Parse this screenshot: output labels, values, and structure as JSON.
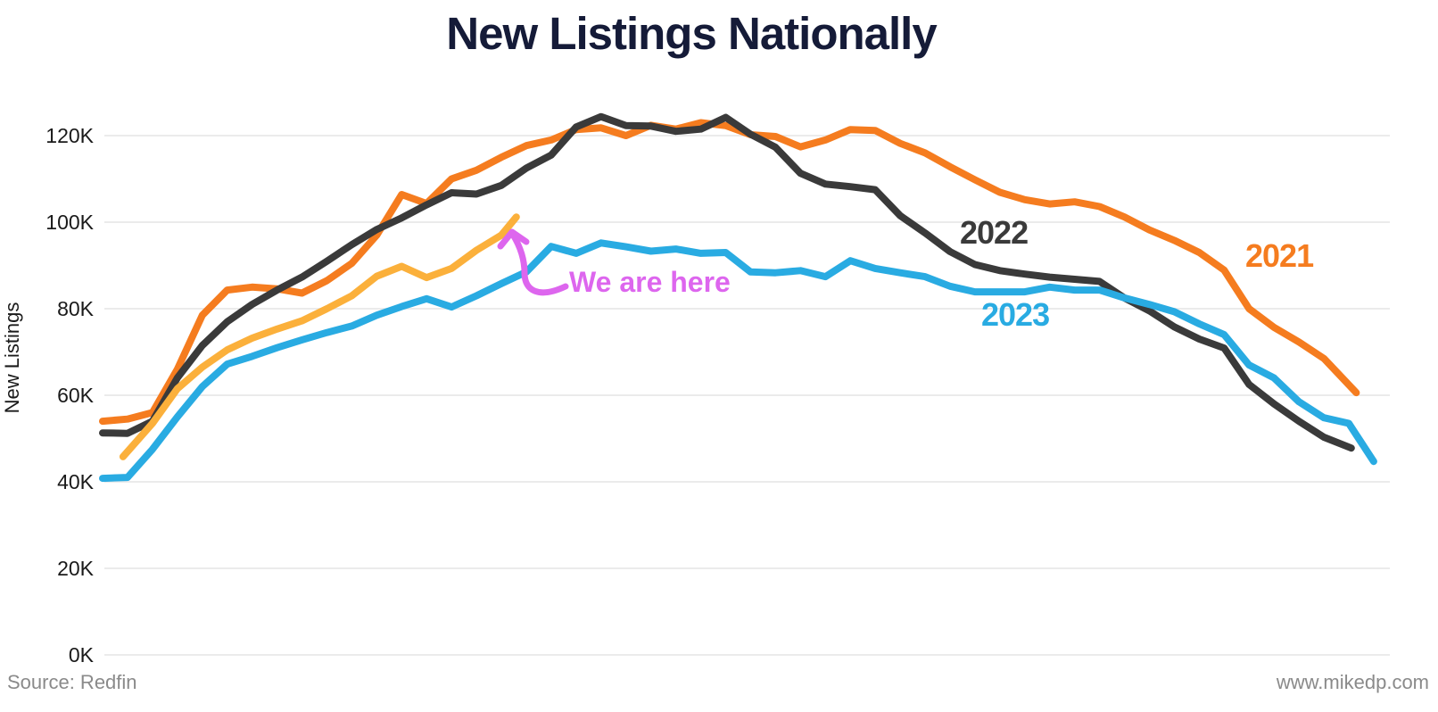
{
  "title": "New Listings Nationally",
  "y_axis": {
    "label": "New Listings",
    "ticks": [
      "120K",
      "100K",
      "80K",
      "60K",
      "40K",
      "20K",
      "0K"
    ],
    "tick_values": [
      120,
      100,
      80,
      60,
      40,
      20,
      0
    ]
  },
  "x_axis": {
    "ticks": []
  },
  "year_labels": [
    {
      "text": "2021",
      "color": "#f57c1f"
    },
    {
      "text": "2022",
      "color": "#3a3a3a"
    },
    {
      "text": "2023",
      "color": "#29abe2"
    }
  ],
  "annotation": {
    "text": "We are here",
    "color": "#dd66ee"
  },
  "footer": {
    "source": "Source: Redfin",
    "site": "www.mikedp.com"
  },
  "colors": {
    "grid": "#ebebeb",
    "tick_text": "#1a1a1a",
    "title": "#151b38"
  },
  "chart_data": {
    "type": "line",
    "title": "New Listings Nationally",
    "ylabel": "New Listings",
    "y_unit": "thousands of listings",
    "x_unit": "week of year (no tick labels shown)",
    "ylim": [
      0,
      130
    ],
    "grid": "horizontal only",
    "legend": "inline colored year labels",
    "series": [
      {
        "name": "2021",
        "color": "#f57c1f",
        "x": [
          1,
          2,
          3,
          4,
          5,
          6,
          7,
          8,
          9,
          10,
          11,
          12,
          13,
          14,
          15,
          16,
          17,
          18,
          19,
          20,
          21,
          22,
          23,
          24,
          25,
          26,
          27,
          28,
          29,
          30,
          31,
          32,
          33,
          34,
          35,
          36,
          37,
          38,
          39,
          40,
          41,
          42,
          43,
          44,
          45,
          46,
          47,
          48,
          49,
          50,
          51.3
        ],
        "values": [
          54,
          54.5,
          56,
          66,
          78.5,
          84.3,
          85,
          84.6,
          83.6,
          86.5,
          90.5,
          97,
          106.4,
          104.3,
          110,
          112,
          115,
          117.7,
          119,
          121.4,
          121.8,
          120,
          122.4,
          121.5,
          123,
          122.3,
          120.2,
          119.8,
          117.4,
          119,
          121.4,
          121.2,
          118.2,
          116,
          112.8,
          109.8,
          106.9,
          105.2,
          104.2,
          104.7,
          103.6,
          101.2,
          98.2,
          95.8,
          93,
          88.9,
          80,
          75.7,
          72.3,
          68.5,
          60.6
        ]
      },
      {
        "name": "2022",
        "color": "#3a3a3a",
        "x": [
          1,
          2,
          3,
          4,
          5,
          6,
          7,
          8,
          9,
          10,
          11,
          12,
          13,
          14,
          15,
          16,
          17,
          18,
          19,
          20,
          21,
          22,
          23,
          24,
          25,
          26,
          27,
          28,
          29,
          30,
          31,
          32,
          33,
          34,
          35,
          36,
          37,
          38,
          39,
          40,
          41,
          42,
          43,
          44,
          45,
          46,
          47,
          48,
          49,
          50,
          51.1
        ],
        "values": [
          51.3,
          51.2,
          54,
          64,
          71.5,
          77,
          81,
          84.3,
          87.3,
          91,
          94.8,
          98.3,
          101,
          104,
          106.8,
          106.5,
          108.5,
          112.5,
          115.5,
          122,
          124.4,
          122.3,
          122.2,
          121,
          121.5,
          124.2,
          120.3,
          117.3,
          111.3,
          108.8,
          108.2,
          107.5,
          101.5,
          97.5,
          93.2,
          90.2,
          88.8,
          88,
          87.3,
          86.8,
          86.3,
          82.5,
          79.5,
          75.8,
          73,
          70.9,
          62.5,
          58,
          54,
          50.3,
          47.8
        ]
      },
      {
        "name": "2023",
        "color": "#29abe2",
        "x": [
          1,
          2,
          3,
          4,
          5,
          6,
          7,
          8,
          9,
          10,
          11,
          12,
          13,
          14,
          15,
          16,
          17,
          18,
          19,
          20,
          21,
          22,
          23,
          24,
          25,
          26,
          27,
          28,
          29,
          30,
          31,
          32,
          33,
          34,
          35,
          36,
          37,
          38,
          39,
          40,
          41,
          42,
          43,
          44,
          45,
          46,
          47,
          48,
          49,
          50,
          51,
          52
        ],
        "values": [
          40.8,
          41,
          47.5,
          55,
          62,
          67.2,
          69,
          71,
          72.8,
          74.5,
          76,
          78.5,
          80.5,
          82.3,
          80.4,
          83,
          85.8,
          88.5,
          94.4,
          92.8,
          95.2,
          94.3,
          93.3,
          93.8,
          92.8,
          93,
          88.5,
          88.3,
          88.8,
          87.4,
          91.1,
          89.3,
          88.3,
          87.4,
          85.2,
          83.9,
          83.9,
          83.9,
          85,
          84.3,
          84.3,
          82.5,
          81,
          79.3,
          76.5,
          74,
          67,
          64,
          58.5,
          54.8,
          53.5,
          44.7
        ]
      },
      {
        "name": "current year (We are here)",
        "color": "#fbb03b",
        "x": [
          1.82,
          3,
          4,
          5,
          6,
          7,
          8,
          9,
          10,
          11,
          12,
          13,
          14,
          15,
          16,
          17,
          17.6
        ],
        "values": [
          45.8,
          53.5,
          61.5,
          66.5,
          70.5,
          73.2,
          75.3,
          77.2,
          80,
          83,
          87.5,
          89.8,
          87.2,
          89.3,
          93.5,
          97,
          101.2
        ]
      }
    ]
  }
}
